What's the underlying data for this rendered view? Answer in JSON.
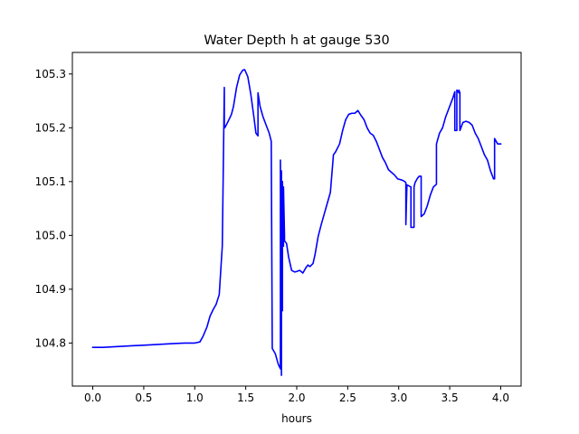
{
  "figure": {
    "title": "Water Depth h at gauge 530",
    "xlabel": "hours"
  },
  "chart_data": {
    "type": "line",
    "title": "Water Depth h at gauge 530",
    "xlabel": "hours",
    "ylabel": "",
    "xlim": [
      -0.2,
      4.2
    ],
    "ylim": [
      104.72,
      105.34
    ],
    "x_ticks": [
      0.0,
      0.5,
      1.0,
      1.5,
      2.0,
      2.5,
      3.0,
      3.5,
      4.0
    ],
    "x_tick_labels": [
      "0.0",
      "0.5",
      "1.0",
      "1.5",
      "2.0",
      "2.5",
      "3.0",
      "3.5",
      "4.0"
    ],
    "y_ticks": [
      104.8,
      104.9,
      105.0,
      105.1,
      105.2,
      105.3
    ],
    "y_tick_labels": [
      "104.8",
      "104.9",
      "105.0",
      "105.1",
      "105.2",
      "105.3"
    ],
    "grid": false,
    "legend": "none",
    "colors": {
      "series": "#0000ff",
      "axes": "#000000",
      "background": "#ffffff"
    },
    "series": [
      {
        "color": "#0000ff",
        "x": [
          0.0,
          0.1,
          0.2,
          0.3,
          0.4,
          0.5,
          0.6,
          0.7,
          0.8,
          0.9,
          1.0,
          1.05,
          1.08,
          1.12,
          1.15,
          1.18,
          1.21,
          1.24,
          1.27,
          1.29,
          1.29,
          1.29,
          1.295,
          1.33,
          1.36,
          1.38,
          1.41,
          1.44,
          1.47,
          1.49,
          1.52,
          1.55,
          1.58,
          1.6,
          1.62,
          1.62,
          1.64,
          1.67,
          1.7,
          1.73,
          1.75,
          1.76,
          1.76,
          1.79,
          1.82,
          1.84,
          1.84,
          1.85,
          1.85,
          1.86,
          1.86,
          1.87,
          1.87,
          1.88,
          1.88,
          1.9,
          1.92,
          1.95,
          1.98,
          2.0,
          2.03,
          2.06,
          2.09,
          2.11,
          2.13,
          2.16,
          2.18,
          2.21,
          2.24,
          2.27,
          2.3,
          2.33,
          2.36,
          2.38,
          2.38,
          2.42,
          2.45,
          2.48,
          2.51,
          2.54,
          2.57,
          2.6,
          2.63,
          2.66,
          2.69,
          2.72,
          2.75,
          2.78,
          2.81,
          2.84,
          2.87,
          2.9,
          2.93,
          2.96,
          2.99,
          3.03,
          3.06,
          3.07,
          3.07,
          3.08,
          3.08,
          3.1,
          3.12,
          3.12,
          3.15,
          3.15,
          3.16,
          3.18,
          3.2,
          3.22,
          3.22,
          3.25,
          3.28,
          3.31,
          3.34,
          3.37,
          3.37,
          3.4,
          3.43,
          3.46,
          3.49,
          3.51,
          3.53,
          3.55,
          3.55,
          3.57,
          3.57,
          3.59,
          3.59,
          3.6,
          3.6,
          3.6,
          3.63,
          3.66,
          3.69,
          3.72,
          3.75,
          3.78,
          3.81,
          3.84,
          3.87,
          3.9,
          3.93,
          3.94,
          3.94,
          3.97,
          4.0
        ],
        "y": [
          104.792,
          104.792,
          104.793,
          104.794,
          104.795,
          104.796,
          104.797,
          104.798,
          104.799,
          104.8,
          104.8,
          104.802,
          104.812,
          104.83,
          104.85,
          104.862,
          104.872,
          104.89,
          104.98,
          105.275,
          105.2,
          105.2,
          105.2,
          105.213,
          105.225,
          105.24,
          105.275,
          105.298,
          105.307,
          105.308,
          105.295,
          105.262,
          105.22,
          105.19,
          105.185,
          105.265,
          105.24,
          105.22,
          105.205,
          105.19,
          105.175,
          104.79,
          104.79,
          104.78,
          104.76,
          104.752,
          105.14,
          104.74,
          105.12,
          104.86,
          105.1,
          104.98,
          105.09,
          105.0,
          104.99,
          104.985,
          104.96,
          104.935,
          104.932,
          104.933,
          104.935,
          104.93,
          104.94,
          104.945,
          104.942,
          104.948,
          104.965,
          104.998,
          105.02,
          105.04,
          105.06,
          105.08,
          105.15,
          105.155,
          105.155,
          105.17,
          105.195,
          105.215,
          105.225,
          105.227,
          105.227,
          105.232,
          105.223,
          105.215,
          105.2,
          105.19,
          105.186,
          105.175,
          105.16,
          105.145,
          105.135,
          105.122,
          105.117,
          105.112,
          105.105,
          105.103,
          105.1,
          105.098,
          105.02,
          105.09,
          105.094,
          105.092,
          105.09,
          105.015,
          105.015,
          105.09,
          105.098,
          105.105,
          105.11,
          105.11,
          105.035,
          105.04,
          105.055,
          105.075,
          105.09,
          105.095,
          105.17,
          105.19,
          105.2,
          105.22,
          105.235,
          105.245,
          105.255,
          105.267,
          105.195,
          105.195,
          105.27,
          105.265,
          105.27,
          105.265,
          105.26,
          105.195,
          105.21,
          105.212,
          105.21,
          105.205,
          105.19,
          105.18,
          105.165,
          105.15,
          105.14,
          105.12,
          105.105,
          105.105,
          105.18,
          105.17,
          105.17
        ]
      }
    ]
  }
}
